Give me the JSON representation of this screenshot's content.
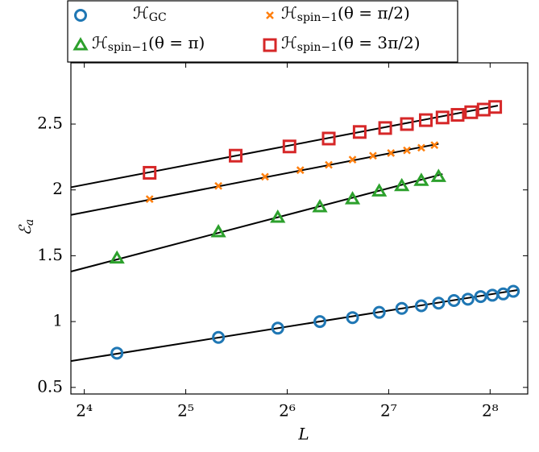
{
  "chart_data": {
    "type": "scatter",
    "x_label": "L",
    "y_label": "ℰa",
    "log_x": true,
    "log_base": 2,
    "xlim": [
      14.6,
      331
    ],
    "ylim": [
      0.45,
      2.965
    ],
    "xticks": [
      {
        "value": 16,
        "label": "2⁴"
      },
      {
        "value": 32,
        "label": "2⁵"
      },
      {
        "value": 64,
        "label": "2⁶"
      },
      {
        "value": 128,
        "label": "2⁷"
      },
      {
        "value": 256,
        "label": "2⁸"
      }
    ],
    "yticks": [
      0.5,
      1,
      1.5,
      2,
      2.5
    ],
    "legend_position": "top",
    "series": [
      {
        "name": "ℋGC",
        "marker": "circle",
        "color": "#1f77b4",
        "x": [
          20,
          40,
          60,
          80,
          100,
          120,
          140,
          160,
          180,
          200,
          220,
          240,
          260,
          280,
          300
        ],
        "values": [
          0.76,
          0.88,
          0.95,
          1.0,
          1.03,
          1.07,
          1.1,
          1.12,
          1.14,
          1.16,
          1.17,
          1.19,
          1.2,
          1.21,
          1.23
        ]
      },
      {
        "name": "ℋspin−1(θ = π/2)",
        "marker": "cross",
        "color": "#ff7f0e",
        "x": [
          25,
          40,
          55,
          70,
          85,
          100,
          115,
          130,
          145,
          160,
          175
        ],
        "values": [
          1.93,
          2.03,
          2.1,
          2.15,
          2.19,
          2.23,
          2.26,
          2.28,
          2.3,
          2.32,
          2.34
        ]
      },
      {
        "name": "ℋspin−1(θ = π)",
        "marker": "triangle",
        "color": "#2ca02c",
        "x": [
          20,
          40,
          60,
          80,
          100,
          120,
          140,
          160,
          180
        ],
        "values": [
          1.48,
          1.68,
          1.79,
          1.87,
          1.93,
          1.99,
          2.03,
          2.07,
          2.1
        ]
      },
      {
        "name": "ℋspin−1(θ = 3π/2)",
        "marker": "square",
        "color": "#d62728",
        "x": [
          25,
          45,
          65,
          85,
          105,
          125,
          145,
          165,
          185,
          205,
          225,
          245,
          265
        ],
        "values": [
          2.13,
          2.26,
          2.33,
          2.39,
          2.44,
          2.47,
          2.5,
          2.53,
          2.55,
          2.57,
          2.59,
          2.61,
          2.63
        ]
      }
    ],
    "fit_lines": [
      {
        "color": "#000000",
        "x": [
          14.6,
          310
        ],
        "values": [
          0.7,
          1.24
        ]
      },
      {
        "color": "#000000",
        "x": [
          14.6,
          180
        ],
        "values": [
          1.81,
          2.35
        ]
      },
      {
        "color": "#000000",
        "x": [
          14.6,
          185
        ],
        "values": [
          1.38,
          2.12
        ]
      },
      {
        "color": "#000000",
        "x": [
          14.6,
          270
        ],
        "values": [
          2.02,
          2.64
        ]
      }
    ]
  }
}
